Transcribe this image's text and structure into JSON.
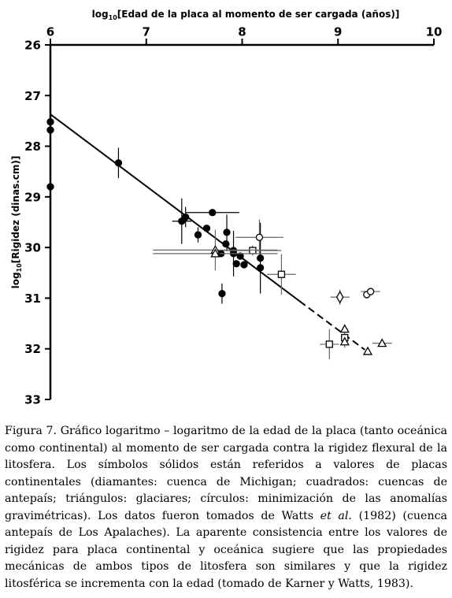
{
  "chart_data": {
    "type": "scatter",
    "x_label": {
      "prefix": "log",
      "sub": "10",
      "text": "[Edad de la placa al momento de ser cargada (años)]"
    },
    "y_label": {
      "prefix": "log",
      "sub": "10",
      "text": "[Rigidez (dinas.cm)]"
    },
    "xlim": [
      6,
      10
    ],
    "xticks": [
      6,
      7,
      8,
      9,
      10
    ],
    "ylim": [
      26,
      33
    ],
    "yticks": [
      26,
      27,
      28,
      29,
      30,
      31,
      32,
      33
    ],
    "y_inverted": true,
    "x_axis_position": "top",
    "series": [
      {
        "marker": "circle",
        "filled": true,
        "color": "#000000",
        "x": [
          6,
          6,
          6,
          6.71,
          7.37,
          7.41,
          7.69,
          7.54,
          7.63,
          7.84,
          7.83,
          7.78,
          7.91,
          7.91,
          7.94,
          7.98,
          8.02,
          8.19,
          8.19,
          7.79
        ],
        "y": [
          27.52,
          27.68,
          28.8,
          28.33,
          29.48,
          29.4,
          29.31,
          29.75,
          29.62,
          29.7,
          29.93,
          30.12,
          30.12,
          30.06,
          30.32,
          30.17,
          30.34,
          30.21,
          30.4,
          30.91
        ],
        "xerr": [
          null,
          null,
          null,
          null,
          0.1,
          null,
          0.28,
          null,
          null,
          null,
          null,
          null,
          null,
          null,
          null,
          null,
          null,
          null,
          null,
          null
        ],
        "yerr": [
          null,
          null,
          null,
          0.3,
          0.45,
          0.2,
          null,
          0.15,
          null,
          0.35,
          null,
          null,
          0.45,
          null,
          null,
          null,
          null,
          0.7,
          null,
          0.2
        ]
      },
      {
        "marker": "square",
        "filled": false,
        "color": "#000000",
        "x": [
          8.11,
          8.41,
          8.91,
          9.07
        ],
        "y": [
          30.06,
          30.53,
          31.91,
          31.78
        ],
        "xerr": [
          0.3,
          0.15,
          0.1,
          null
        ],
        "yerr": [
          0.1,
          0.4,
          0.3,
          0.2
        ]
      },
      {
        "marker": "circle",
        "filled": false,
        "color": "#000000",
        "x": [
          8.18,
          9.3,
          9.34
        ],
        "y": [
          29.8,
          30.93,
          30.87
        ],
        "xerr": [
          0.25,
          null,
          0.1
        ],
        "yerr": [
          0.35,
          null,
          null
        ]
      },
      {
        "marker": "triangle",
        "filled": false,
        "color": "#000000",
        "x": [
          7.72,
          7.72,
          9.07,
          9.07,
          9.31,
          9.46
        ],
        "y": [
          30.05,
          30.12,
          31.61,
          31.86,
          32.05,
          31.89
        ],
        "xerr": [
          0.65,
          0.65,
          null,
          null,
          null,
          0.1
        ],
        "yerr": [
          0.4,
          null,
          null,
          null,
          null,
          null
        ]
      },
      {
        "marker": "diamond",
        "filled": false,
        "color": "#000000",
        "x": [
          9.02
        ],
        "y": [
          30.98
        ],
        "xerr": [
          0.1
        ],
        "yerr": [
          0.15
        ]
      }
    ],
    "fit_line": {
      "x": [
        6,
        8.6
      ],
      "y": [
        27.37,
        31.06
      ]
    },
    "fit_line_dashed": {
      "x": [
        8.6,
        9.28
      ],
      "y": [
        31.06,
        32.02
      ]
    }
  },
  "caption": {
    "parts": [
      "Figura 7. Gráfico logaritmo – logaritmo de la edad de la placa (tanto oceánica como continental) al momento de ser cargada contra la rigidez flexural de la litosfera. Los símbolos sólidos están referidos a valores de placas continentales (diamantes: cuenca de Michigan; cuadrados: cuencas de antepaís; triángulos: glaciares; círculos: minimización de las anomalías gravimétricas). Los datos fueron tomados de Watts ",
      "et al.",
      " (1982) (cuenca antepaís de Los Apalaches). La aparente consistencia entre los valores de rigidez para placa continental y oceánica sugiere que las propiedades mecánicas de ambos tipos de litosfera son similares y que la rigidez litosférica se incrementa con la edad (tomado de Karner y Watts, 1983)."
    ]
  }
}
